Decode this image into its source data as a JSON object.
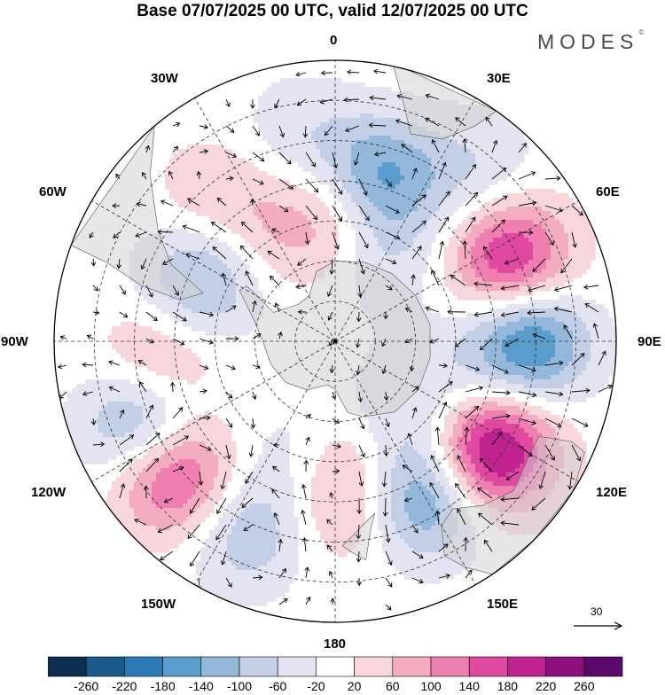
{
  "header": {
    "title": "Base 07/07/2025 00 UTC, valid 12/07/2025 00 UTC",
    "brand": "MODES",
    "brand_mark": "©"
  },
  "map": {
    "projection": "south polar stereographic",
    "longitude_labels": [
      "0",
      "30E",
      "60E",
      "90E",
      "120E",
      "150E",
      "180",
      "150W",
      "120W",
      "90W",
      "60W",
      "30W"
    ],
    "anomaly_centers": [
      {
        "lon": 65,
        "lat": -42,
        "value": 200
      },
      {
        "lon": 90,
        "lat": -42,
        "value": -200
      },
      {
        "lon": 125,
        "lat": -42,
        "value": 250
      },
      {
        "lon": 150,
        "lat": -45,
        "value": -160
      },
      {
        "lon": 15,
        "lat": -48,
        "value": -160
      },
      {
        "lon": 3,
        "lat": -58,
        "value": 80
      },
      {
        "lon": -65,
        "lat": -53,
        "value": -120
      },
      {
        "lon": -98,
        "lat": -45,
        "value": 100
      },
      {
        "lon": -112,
        "lat": -38,
        "value": -160
      },
      {
        "lon": -130,
        "lat": -38,
        "value": 180
      },
      {
        "lon": -155,
        "lat": -38,
        "value": -100
      },
      {
        "lon": 178,
        "lat": -50,
        "value": 80
      },
      {
        "lon": 170,
        "lat": -63,
        "value": 90
      },
      {
        "lon": -40,
        "lat": -44,
        "value": 60
      },
      {
        "lon": 30,
        "lat": -65,
        "value": -60
      },
      {
        "lon": 110,
        "lat": -62,
        "value": -40
      },
      {
        "lon": 150,
        "lat": -65,
        "value": -80
      },
      {
        "lon": -165,
        "lat": -60,
        "value": -60
      },
      {
        "lon": -25,
        "lat": -60,
        "value": 50
      },
      {
        "lon": 40,
        "lat": -35,
        "value": -60
      },
      {
        "lon": -10,
        "lat": -38,
        "value": -50
      }
    ]
  },
  "vector_scale": {
    "label": "30"
  },
  "colorbar": {
    "ticks": [
      "-260",
      "-220",
      "-180",
      "-140",
      "-100",
      "-60",
      "-20",
      "20",
      "60",
      "100",
      "140",
      "180",
      "220",
      "260"
    ],
    "colors": [
      "#0d2e4e",
      "#1b5a8a",
      "#2b7ab6",
      "#5a9ccb",
      "#93b8da",
      "#c3cfe6",
      "#e3e3f1",
      "#ffffff",
      "#f7d6dc",
      "#f4adc0",
      "#ee7fb0",
      "#df4aa0",
      "#c0238f",
      "#8c117c",
      "#5a0a6a"
    ]
  }
}
